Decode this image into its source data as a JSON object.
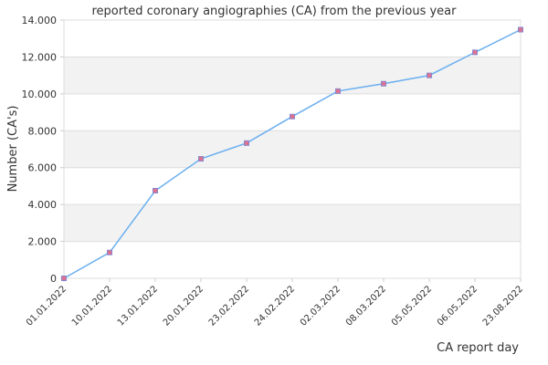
{
  "chart_data": {
    "type": "line",
    "title": "reported coronary angiographies (CA) from the previous year",
    "xlabel": "CA report day",
    "ylabel": "Number (CA's)",
    "categories": [
      "01.01.2022",
      "10.01.2022",
      "13.01.2022",
      "20.01.2022",
      "23.02.2022",
      "24.02.2022",
      "02.03.2022",
      "08.03.2022",
      "05.05.2022",
      "06.05.2022",
      "23.08.2022"
    ],
    "series": [
      {
        "values": [
          0,
          1400,
          4750,
          6480,
          7330,
          8770,
          10150,
          10550,
          11000,
          12250,
          13480
        ]
      }
    ],
    "ylim": [
      0,
      14000
    ],
    "yticks": [
      0,
      2000,
      4000,
      6000,
      8000,
      10000,
      12000,
      14000
    ],
    "ytick_labels": [
      "0",
      "2.000",
      "4.000",
      "6.000",
      "8.000",
      "10.000",
      "12.000",
      "14.000"
    ],
    "grid": true,
    "legend": "none",
    "colors": {
      "line": "#6aaff0",
      "marker_fill": "#e07090",
      "marker_stroke": "#8888cc",
      "band": "#f2f2f2",
      "grid": "#dddddd",
      "axis": "#cccccc",
      "text": "#333333"
    }
  }
}
